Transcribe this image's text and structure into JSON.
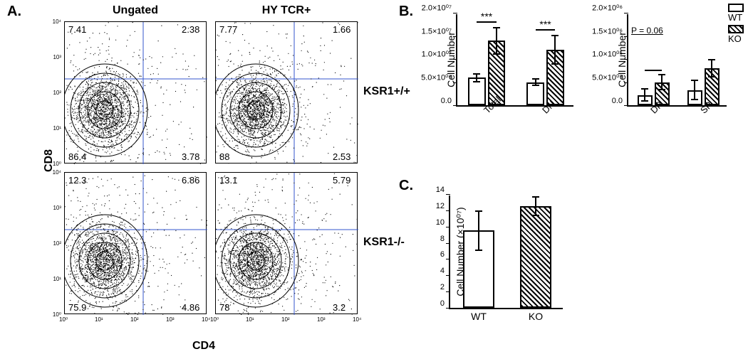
{
  "panelA": {
    "label": "A.",
    "col_labels": [
      "Ungated",
      "HY TCR+"
    ],
    "row_labels": [
      "KSR1+/+",
      "KSR1-/-"
    ],
    "y_axis": "CD8",
    "x_axis": "CD4",
    "plots": [
      {
        "quads": {
          "ul": "7.41",
          "ur": "2.38",
          "ll": "86.4",
          "lr": "3.78"
        },
        "cross_x": 0.55,
        "cross_y": 0.4
      },
      {
        "quads": {
          "ul": "7.77",
          "ur": "1.66",
          "ll": "88",
          "lr": "2.53"
        },
        "cross_x": 0.55,
        "cross_y": 0.4
      },
      {
        "quads": {
          "ul": "12.3",
          "ur": "6.86",
          "ll": "75.9",
          "lr": "4.86"
        },
        "cross_x": 0.55,
        "cross_y": 0.4
      },
      {
        "quads": {
          "ul": "13.1",
          "ur": "5.79",
          "ll": "78",
          "lr": "3.2"
        },
        "cross_x": 0.55,
        "cross_y": 0.4
      }
    ],
    "axis_ticks": [
      "10⁰",
      "10¹",
      "10²",
      "10³",
      "10⁴"
    ]
  },
  "panelB": {
    "label": "B.",
    "y_axis_label": "Cell Number",
    "left_chart": {
      "ymax": 20000000.0,
      "y_ticks": [
        0,
        5000000.0,
        10000000.0,
        15000000.0,
        20000000.0
      ],
      "y_tick_labels": [
        "0.0",
        "5.0×10⁰⁶",
        "1.0×10⁰⁷",
        "1.5×10⁰⁷",
        "2.0×10⁰⁷"
      ],
      "groups": [
        {
          "label": "Total",
          "wt": {
            "val": 6000000.0,
            "err": 1000000.0
          },
          "ko": {
            "val": 14000000.0,
            "err": 3000000.0
          },
          "sig": "***"
        },
        {
          "label": "DN",
          "wt": {
            "val": 5000000.0,
            "err": 900000.0
          },
          "ko": {
            "val": 12000000.0,
            "err": 3300000.0
          },
          "sig": "***"
        }
      ]
    },
    "right_chart": {
      "ymax": 2000000.0,
      "y_ticks": [
        0,
        500000.0,
        1000000.0,
        1500000.0,
        2000000.0
      ],
      "y_tick_labels": [
        "0.0",
        "5.0×10⁰⁵",
        "1.0×10⁰⁶",
        "1.5×10⁰⁶",
        "2.0×10⁰⁶"
      ],
      "p_label": "P = 0.06",
      "groups": [
        {
          "label": "DP",
          "wt": {
            "val": 220000.0,
            "err": 150000.0
          },
          "ko": {
            "val": 500000.0,
            "err": 180000.0
          }
        },
        {
          "label": "SP",
          "wt": {
            "val": 330000.0,
            "err": 220000.0
          },
          "ko": {
            "val": 800000.0,
            "err": 200000.0
          }
        }
      ]
    },
    "legend": {
      "wt": "WT",
      "ko": "KO"
    }
  },
  "panelC": {
    "label": "C.",
    "y_axis_label": "Cell Number (×10⁰⁷)",
    "ymax": 14,
    "y_ticks": [
      0,
      2,
      4,
      6,
      8,
      10,
      12,
      14
    ],
    "groups": [
      {
        "label": "WT",
        "type": "wt",
        "val": 9.5,
        "err": 2.5
      },
      {
        "label": "KO",
        "type": "ko",
        "val": 12.5,
        "err": 1.2
      }
    ]
  },
  "colors": {
    "border": "#000000",
    "bg": "#ffffff",
    "cross": "#3355cc"
  }
}
